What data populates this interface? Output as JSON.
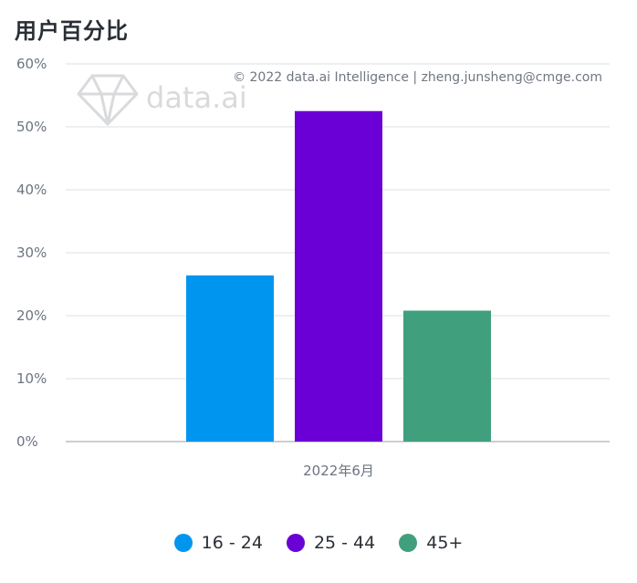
{
  "title": "用户百分比",
  "credit": "© 2022 data.ai Intelligence | zheng.junsheng@cmge.com",
  "watermark": {
    "text": "data.ai",
    "icon": "diamond-logo-icon"
  },
  "colors": {
    "16 - 24": "#0096f0",
    "25 - 44": "#6a00d6",
    "45+": "#40a07e"
  },
  "chart_data": {
    "type": "bar",
    "title": "用户百分比",
    "categories": [
      "2022年6月"
    ],
    "series": [
      {
        "name": "16 - 24",
        "values": [
          26.4
        ]
      },
      {
        "name": "25 - 44",
        "values": [
          52.5
        ]
      },
      {
        "name": "45+",
        "values": [
          20.8
        ]
      }
    ],
    "y_ticks": [
      "0%",
      "10%",
      "20%",
      "30%",
      "40%",
      "50%",
      "60%"
    ],
    "ylim": [
      0,
      60
    ],
    "unit": "%",
    "grid": true,
    "legend_position": "bottom"
  }
}
